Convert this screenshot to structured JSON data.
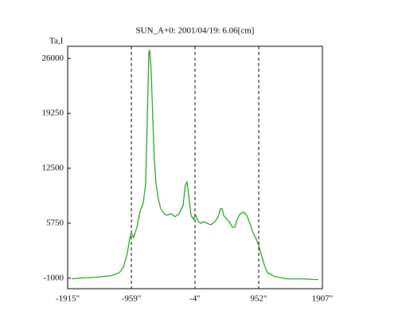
{
  "chart_data": {
    "type": "line",
    "title": "SUN_A+0: 2001/04/19: 6.06[cm]",
    "y_label": "Ta,I",
    "x": [
      -1855,
      -1736,
      -1497,
      -1258,
      -1139,
      -1079,
      -1020,
      -984,
      -960,
      -924,
      -876,
      -828,
      -781,
      -745,
      -721,
      -697,
      -685,
      -661,
      -637,
      -614,
      -590,
      -554,
      -518,
      -470,
      -423,
      -363,
      -303,
      -243,
      -184,
      -148,
      -124,
      -100,
      -64,
      -28,
      8,
      43,
      79,
      127,
      175,
      234,
      294,
      342,
      378,
      402,
      426,
      473,
      509,
      557,
      593,
      629,
      676,
      724,
      772,
      819,
      867,
      915,
      951,
      986,
      1034,
      1082,
      1189,
      1368,
      1607,
      1846
    ],
    "series": [
      {
        "color": "#109a10",
        "values": [
          -1098,
          -1000,
          -902,
          -707,
          -315,
          370,
          2033,
          3794,
          4576,
          3989,
          5261,
          7218,
          8196,
          10642,
          18468,
          26784,
          26980,
          24338,
          18468,
          13577,
          10642,
          8685,
          7511,
          6924,
          6729,
          6924,
          6533,
          6924,
          7903,
          10446,
          10837,
          9174,
          6729,
          6239,
          6729,
          5946,
          5750,
          5946,
          5750,
          5555,
          5946,
          6533,
          7511,
          7511,
          6729,
          6239,
          5946,
          5261,
          5261,
          6239,
          6924,
          7120,
          6729,
          5750,
          4576,
          3794,
          3011,
          2033,
          663,
          -315,
          -804,
          -1098,
          -1098,
          -1196
        ]
      }
    ],
    "xlim": [
      -1915,
      1907
    ],
    "ylim": [
      -2300,
      27500
    ],
    "xticks": [
      {
        "value": -1915,
        "label": "-1915\""
      },
      {
        "value": -959,
        "label": "-959\""
      },
      {
        "value": -4,
        "label": "-4\""
      },
      {
        "value": 952,
        "label": "952\""
      },
      {
        "value": 1907,
        "label": "1907\""
      }
    ],
    "yticks": [
      -1000,
      5750,
      12500,
      19250,
      26000
    ]
  }
}
